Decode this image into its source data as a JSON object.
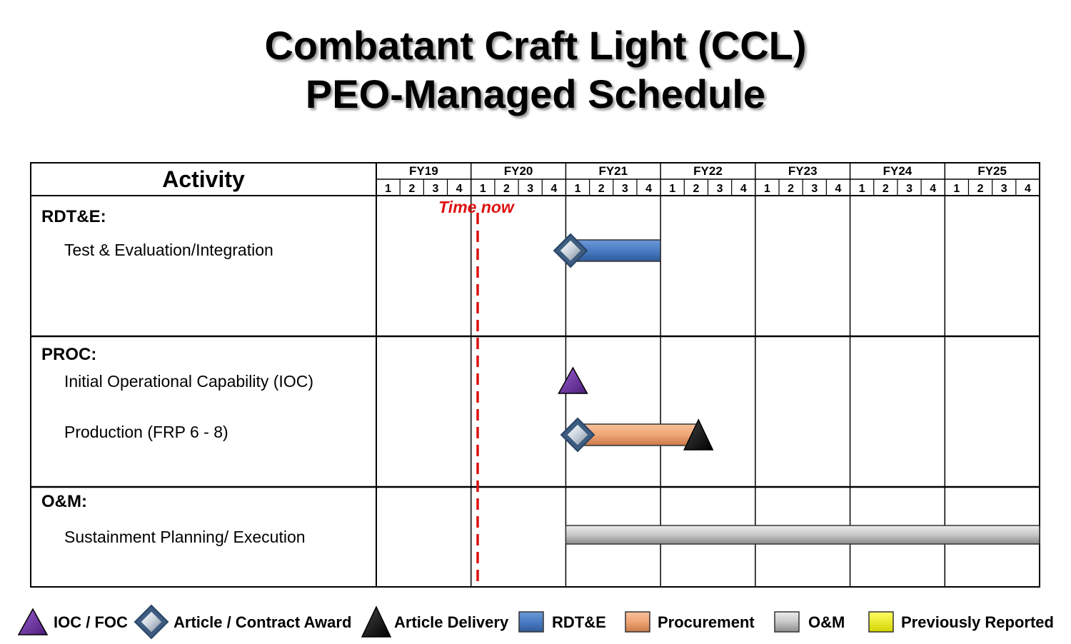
{
  "title": {
    "line1": "Combatant Craft Light (CCL)",
    "line2": "PEO-Managed Schedule"
  },
  "header": {
    "activity_label": "Activity",
    "fiscal_years": [
      "FY19",
      "FY20",
      "FY21",
      "FY22",
      "FY23",
      "FY24",
      "FY25"
    ],
    "quarters": [
      "1",
      "2",
      "3",
      "4"
    ]
  },
  "time_now": {
    "label": "Time now",
    "fy": "FY20",
    "quarter": 1.25,
    "color": "#dd1111"
  },
  "sections": [
    {
      "heading": "RDT&E:",
      "activities": [
        {
          "label": "Test & Evaluation/Integration",
          "bars": [
            {
              "type": "rdte",
              "start": [
                "FY21",
                1
              ],
              "end": [
                "FY21",
                4
              ]
            }
          ],
          "milestones": [
            {
              "type": "article-award",
              "at": [
                "FY21",
                1.2
              ]
            }
          ]
        }
      ]
    },
    {
      "heading": "PROC:",
      "activities": [
        {
          "label": "Initial Operational Capability (IOC)",
          "bars": [],
          "milestones": [
            {
              "type": "ioc-foc",
              "at": [
                "FY21",
                1.3
              ]
            }
          ]
        },
        {
          "label": "Production (FRP 6 - 8)",
          "bars": [
            {
              "type": "procurement",
              "start": [
                "FY21",
                1.5
              ],
              "end": [
                "FY22",
                2.6
              ]
            }
          ],
          "milestones": [
            {
              "type": "article-award",
              "at": [
                "FY21",
                1.5
              ]
            },
            {
              "type": "article-delivery",
              "at": [
                "FY22",
                2.6
              ]
            }
          ]
        }
      ]
    },
    {
      "heading": "O&M:",
      "activities": [
        {
          "label": "Sustainment Planning/ Execution",
          "bars": [
            {
              "type": "om",
              "start": [
                "FY21",
                1
              ],
              "end": [
                "FY25",
                4
              ]
            }
          ],
          "milestones": []
        }
      ]
    }
  ],
  "legend": [
    {
      "type": "ioc-foc",
      "label": "IOC / FOC"
    },
    {
      "type": "article-award",
      "label": "Article  / Contract Award"
    },
    {
      "type": "article-delivery",
      "label": "Article  Delivery"
    },
    {
      "type": "rdte",
      "label": "RDT&E"
    },
    {
      "type": "procurement",
      "label": "Procurement"
    },
    {
      "type": "om",
      "label": "O&M"
    },
    {
      "type": "previously-reported",
      "label": "Previously  Reported"
    }
  ],
  "colors": {
    "rdte": "#4a7cc4",
    "procurement": "#f0a575",
    "om": "#c8c8c8",
    "previously-reported": "#f5f500",
    "ioc-foc": "#6a2d9c",
    "article-award": "#b8c4d0",
    "article-delivery": "#111111",
    "grid": "#000000"
  }
}
